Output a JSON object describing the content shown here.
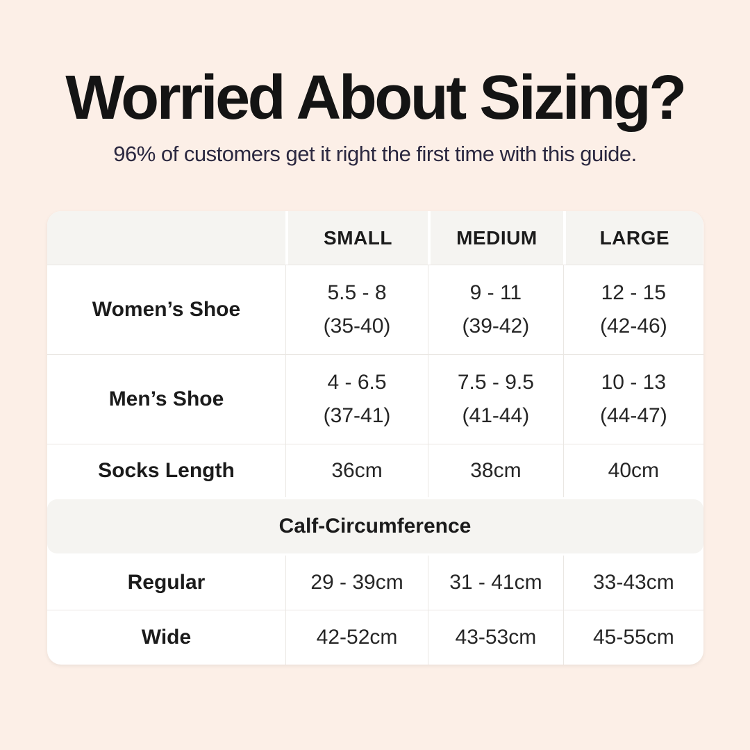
{
  "page": {
    "title": "Worried About Sizing?",
    "subtitle": "96% of customers get it right the first time with this guide."
  },
  "colors": {
    "page_background": "#fcefe7",
    "table_background": "#ffffff",
    "header_band_background": "#f5f4f1",
    "divider": "#eae7e3",
    "title_text": "#141414",
    "subtitle_text": "#2b2840",
    "table_text": "#262626"
  },
  "chart_data": {
    "type": "table",
    "title": "Worried About Sizing?",
    "subtitle": "96% of customers get it right the first time with this guide.",
    "columns": [
      "",
      "SMALL",
      "MEDIUM",
      "LARGE"
    ],
    "rows": [
      {
        "label": "Women’s Shoe",
        "small": [
          "5.5 - 8",
          "(35-40)"
        ],
        "medium": [
          "9 - 11",
          "(39-42)"
        ],
        "large": [
          "12 - 15",
          "(42-46)"
        ]
      },
      {
        "label": "Men’s Shoe",
        "small": [
          "4 - 6.5",
          "(37-41)"
        ],
        "medium": [
          "7.5 - 9.5",
          "(41-44)"
        ],
        "large": [
          "10 - 13",
          "(44-47)"
        ]
      },
      {
        "label": "Socks Length",
        "small": [
          "36cm"
        ],
        "medium": [
          "38cm"
        ],
        "large": [
          "40cm"
        ]
      }
    ],
    "section_header": "Calf-Circumference",
    "section_rows": [
      {
        "label": "Regular",
        "small": [
          "29 - 39cm"
        ],
        "medium": [
          "31 - 41cm"
        ],
        "large": [
          "33-43cm"
        ]
      },
      {
        "label": "Wide",
        "small": [
          "42-52cm"
        ],
        "medium": [
          "43-53cm"
        ],
        "large": [
          "45-55cm"
        ]
      }
    ]
  }
}
